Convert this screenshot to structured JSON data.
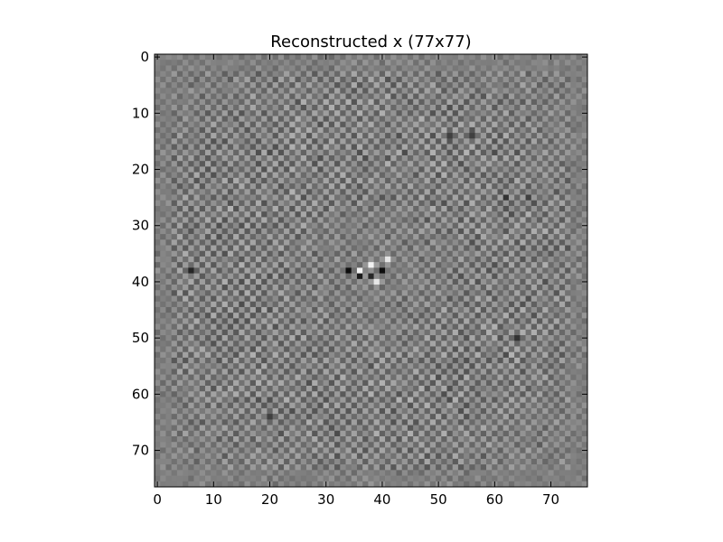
{
  "chart_data": {
    "type": "heatmap",
    "title": "Reconstructed x (77x77)",
    "xlabel": "",
    "ylabel": "",
    "rows": 77,
    "cols": 77,
    "colormap": "gray",
    "xlim": [
      -0.5,
      76.5
    ],
    "ylim": [
      76.5,
      -0.5
    ],
    "x_ticks": [
      0,
      10,
      20,
      30,
      40,
      50,
      60,
      70
    ],
    "y_ticks": [
      0,
      10,
      20,
      30,
      40,
      50,
      60,
      70
    ],
    "x_tick_labels": [
      "0",
      "10",
      "20",
      "30",
      "40",
      "50",
      "60",
      "70"
    ],
    "y_tick_labels": [
      "0",
      "10",
      "20",
      "30",
      "40",
      "50",
      "60",
      "70"
    ],
    "grid": false,
    "background_value": 0.5,
    "pattern": "checkerboard-like noise pattern of gray values around mid-gray",
    "notable_cells": [
      {
        "row": 38,
        "col": 34,
        "value": 0.05
      },
      {
        "row": 38,
        "col": 40,
        "value": 0.05
      },
      {
        "row": 39,
        "col": 36,
        "value": 0.1
      },
      {
        "row": 39,
        "col": 38,
        "value": 0.15
      },
      {
        "row": 38,
        "col": 6,
        "value": 0.15
      },
      {
        "row": 38,
        "col": 36,
        "value": 0.95
      },
      {
        "row": 37,
        "col": 38,
        "value": 0.95
      },
      {
        "row": 40,
        "col": 39,
        "value": 0.9
      },
      {
        "row": 36,
        "col": 41,
        "value": 0.9
      },
      {
        "row": 25,
        "col": 62,
        "value": 0.2
      },
      {
        "row": 25,
        "col": 66,
        "value": 0.25
      },
      {
        "row": 50,
        "col": 64,
        "value": 0.2
      },
      {
        "row": 14,
        "col": 52,
        "value": 0.25
      },
      {
        "row": 14,
        "col": 56,
        "value": 0.25
      },
      {
        "row": 64,
        "col": 20,
        "value": 0.25
      }
    ]
  }
}
